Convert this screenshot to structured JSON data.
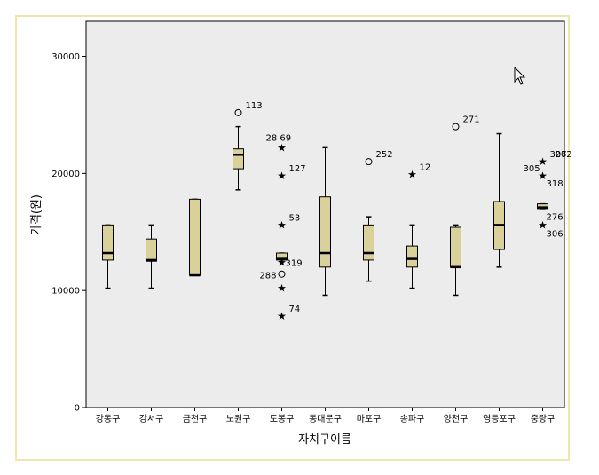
{
  "chart_data": {
    "type": "boxplot",
    "xlabel": "자치구이름",
    "ylabel": "가격(원)",
    "ylim": [
      0,
      33000
    ],
    "yticks": [
      0,
      10000,
      20000,
      30000
    ],
    "grid": false,
    "colors": {
      "plot_bg": "#ececec",
      "box_fill": "#d9d09a",
      "frame_border": "#f0e6a8"
    },
    "categories": [
      "강동구",
      "강서구",
      "금천구",
      "노원구",
      "도봉구",
      "동대문구",
      "마포구",
      "송파구",
      "양천구",
      "영등포구",
      "중랑구"
    ],
    "boxes": [
      {
        "min": 10200,
        "q1": 12600,
        "median": 13200,
        "q3": 15600,
        "max": 15600
      },
      {
        "min": 10200,
        "q1": 12500,
        "median": 12600,
        "q3": 14400,
        "max": 15600
      },
      {
        "min": 11300,
        "q1": 11300,
        "median": 11300,
        "q3": 17800,
        "max": 17800
      },
      {
        "min": 18600,
        "q1": 20400,
        "median": 21600,
        "q3": 22100,
        "max": 24000
      },
      {
        "min": 12600,
        "q1": 12600,
        "median": 12700,
        "q3": 13200,
        "max": 13200
      },
      {
        "min": 9600,
        "q1": 12000,
        "median": 13200,
        "q3": 18000,
        "max": 22200
      },
      {
        "min": 10800,
        "q1": 12600,
        "median": 13200,
        "q3": 15600,
        "max": 16300
      },
      {
        "min": 10200,
        "q1": 12000,
        "median": 12700,
        "q3": 13800,
        "max": 15600
      },
      {
        "min": 9600,
        "q1": 12000,
        "median": 12000,
        "q3": 15400,
        "max": 15600
      },
      {
        "min": 12000,
        "q1": 13500,
        "median": 15600,
        "q3": 17600,
        "max": 23400
      },
      {
        "min": 17000,
        "q1": 17000,
        "median": 17100,
        "q3": 17400,
        "max": 17400
      }
    ],
    "outliers": [
      {
        "category": 3,
        "y": 25200,
        "marker": "circle",
        "label": "113"
      },
      {
        "category": 4,
        "y": 22200,
        "marker": "star",
        "label": "28  69"
      },
      {
        "category": 4,
        "y": 19800,
        "marker": "star",
        "label": "127"
      },
      {
        "category": 4,
        "y": 15600,
        "marker": "star",
        "label": "53"
      },
      {
        "category": 4,
        "y": 12400,
        "marker": "star",
        "label": "319"
      },
      {
        "category": 4,
        "y": 11400,
        "marker": "circle",
        "label": "288"
      },
      {
        "category": 4,
        "y": 10200,
        "marker": "star",
        "label": ""
      },
      {
        "category": 4,
        "y": 7800,
        "marker": "star",
        "label": "74"
      },
      {
        "category": 6,
        "y": 21000,
        "marker": "circle",
        "label": "252"
      },
      {
        "category": 7,
        "y": 19900,
        "marker": "star",
        "label": "12"
      },
      {
        "category": 8,
        "y": 24000,
        "marker": "circle",
        "label": "271"
      },
      {
        "category": 10,
        "y": 21000,
        "marker": "star",
        "label": "307"
      },
      {
        "category": 10,
        "y": 21000,
        "marker": "none",
        "label": "262"
      },
      {
        "category": 10,
        "y": 20500,
        "marker": "none",
        "label": "305"
      },
      {
        "category": 10,
        "y": 19800,
        "marker": "star",
        "label": "318"
      },
      {
        "category": 10,
        "y": 16800,
        "marker": "none",
        "label": "276"
      },
      {
        "category": 10,
        "y": 15600,
        "marker": "star",
        "label": "306"
      }
    ]
  }
}
